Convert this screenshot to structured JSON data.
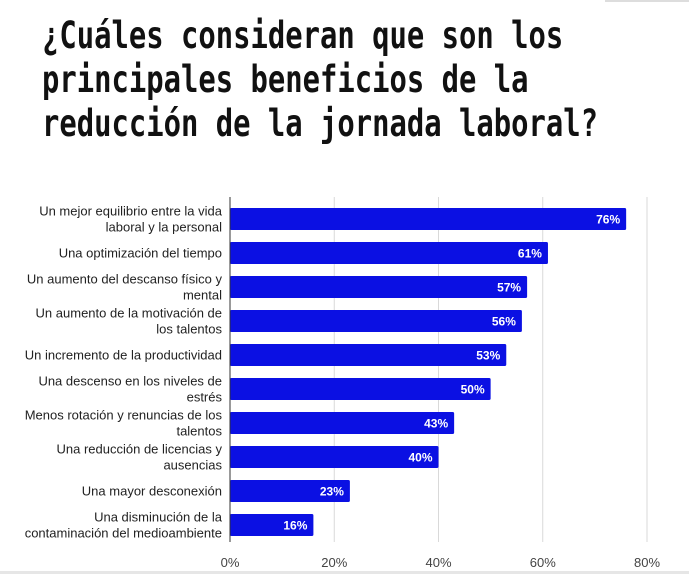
{
  "chart_data": {
    "type": "bar",
    "orientation": "horizontal",
    "title_lines": [
      "¿Cuáles consideran que son los",
      "principales beneficios de la",
      "reducción de la jornada laboral?"
    ],
    "categories": [
      [
        "Un mejor equilibrio entre la vida",
        "laboral y la personal"
      ],
      [
        "Una optimización del tiempo"
      ],
      [
        "Un aumento del descanso físico y",
        "mental"
      ],
      [
        "Un aumento de la motivación de",
        "los talentos"
      ],
      [
        "Un incremento de la productividad"
      ],
      [
        "Una descenso en los niveles de",
        "estrés"
      ],
      [
        "Menos rotación y renuncias de los",
        "talentos"
      ],
      [
        "Una reducción de licencias y",
        "ausencias"
      ],
      [
        "Una mayor desconexión"
      ],
      [
        "Una disminución de la",
        "contaminación del medioambiente"
      ]
    ],
    "values": [
      76,
      61,
      57,
      56,
      53,
      50,
      43,
      40,
      23,
      16
    ],
    "data_labels": [
      "76%",
      "61%",
      "57%",
      "56%",
      "53%",
      "50%",
      "43%",
      "40%",
      "23%",
      "16%"
    ],
    "xlim": [
      0,
      80
    ],
    "xticks": [
      0,
      20,
      40,
      60,
      80
    ],
    "xtick_labels": [
      "0%",
      "20%",
      "40%",
      "60%",
      "80%"
    ],
    "grid": true,
    "legend": "none",
    "colors": {
      "bar": "#0b10e3",
      "grid": "#d9d9d9",
      "axis": "#333333"
    }
  }
}
